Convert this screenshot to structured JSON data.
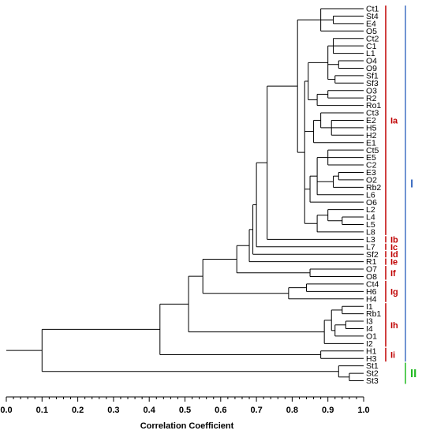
{
  "leaves": [
    "Ct1",
    "St4",
    "E4",
    "O5",
    "Ct2",
    "C1",
    "L1",
    "O4",
    "O9",
    "Sf1",
    "Sf3",
    "O3",
    "R2",
    "Ro1",
    "Ct3",
    "E2",
    "H5",
    "H2",
    "E1",
    "Ct5",
    "E5",
    "C2",
    "E3",
    "O2",
    "Rb2",
    "L6",
    "O6",
    "L2",
    "L4",
    "L5",
    "L8",
    "L3",
    "L7",
    "Sf2",
    "R1",
    "O7",
    "O8",
    "Ct4",
    "H6",
    "H4",
    "I1",
    "Rb1",
    "I3",
    "I4",
    "O1",
    "I2",
    "H1",
    "H3",
    "St1",
    "St2",
    "St3"
  ],
  "axis": {
    "title": "Correlation Coefficient",
    "ticks": [
      "0.0",
      "0.1",
      "0.2",
      "0.3",
      "0.4",
      "0.5",
      "0.6",
      "0.7",
      "0.8",
      "0.9",
      "1.0"
    ],
    "range": [
      0.0,
      1.0
    ]
  },
  "subgroups": [
    {
      "label": "Ia",
      "first": "Ct1",
      "last": "L8"
    },
    {
      "label": "Ib",
      "first": "L3",
      "last": "L3"
    },
    {
      "label": "Ic",
      "first": "L7",
      "last": "L7"
    },
    {
      "label": "Id",
      "first": "Sf2",
      "last": "Sf2"
    },
    {
      "label": "Ie",
      "first": "R1",
      "last": "R1"
    },
    {
      "label": "If",
      "first": "O7",
      "last": "O8"
    },
    {
      "label": "Ig",
      "first": "Ct4",
      "last": "H4"
    },
    {
      "label": "Ih",
      "first": "I1",
      "last": "I2"
    },
    {
      "label": "Ii",
      "first": "H1",
      "last": "H3"
    }
  ],
  "groups": [
    {
      "label": "I",
      "first": "Ct1",
      "last": "H3"
    },
    {
      "label": "II",
      "first": "St1",
      "last": "St3"
    }
  ],
  "colors": {
    "line": "#000000",
    "subgroup": "#c00000",
    "group_I": "#4472c4",
    "group_II": "#22bb22"
  }
}
